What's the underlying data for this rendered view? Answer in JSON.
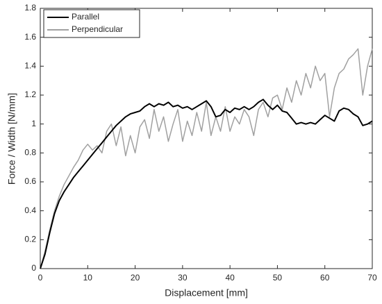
{
  "chart_data": {
    "type": "line",
    "xlabel": "Displacement [mm]",
    "ylabel": "Force / Width [N/mm]",
    "x": [
      0,
      1,
      2,
      3,
      4,
      5,
      6,
      7,
      8,
      9,
      10,
      11,
      12,
      13,
      14,
      15,
      16,
      17,
      18,
      19,
      20,
      21,
      22,
      23,
      24,
      25,
      26,
      27,
      28,
      29,
      30,
      31,
      32,
      33,
      34,
      35,
      36,
      37,
      38,
      39,
      40,
      41,
      42,
      43,
      44,
      45,
      46,
      47,
      48,
      49,
      50,
      51,
      52,
      53,
      54,
      55,
      56,
      57,
      58,
      59,
      60,
      61,
      62,
      63,
      64,
      65,
      66,
      67,
      68,
      69,
      70
    ],
    "series": [
      {
        "name": "Parallel",
        "color": "#000000",
        "values": [
          0,
          0.1,
          0.25,
          0.38,
          0.47,
          0.53,
          0.58,
          0.63,
          0.67,
          0.71,
          0.75,
          0.79,
          0.83,
          0.87,
          0.91,
          0.95,
          0.99,
          1.02,
          1.05,
          1.07,
          1.08,
          1.09,
          1.12,
          1.14,
          1.12,
          1.14,
          1.13,
          1.15,
          1.12,
          1.13,
          1.11,
          1.12,
          1.1,
          1.12,
          1.14,
          1.16,
          1.12,
          1.05,
          1.06,
          1.1,
          1.08,
          1.11,
          1.1,
          1.12,
          1.1,
          1.12,
          1.15,
          1.17,
          1.13,
          1.1,
          1.13,
          1.09,
          1.08,
          1.04,
          1,
          1.01,
          1,
          1.01,
          1,
          1.03,
          1.06,
          1.04,
          1.02,
          1.09,
          1.11,
          1.1,
          1.07,
          1.05,
          0.99,
          1,
          1.02
        ]
      },
      {
        "name": "Perpendicular",
        "color": "#a0a0a0",
        "values": [
          0,
          0.12,
          0.27,
          0.4,
          0.5,
          0.58,
          0.64,
          0.7,
          0.75,
          0.82,
          0.86,
          0.82,
          0.85,
          0.8,
          0.95,
          1,
          0.85,
          0.98,
          0.78,
          0.92,
          0.8,
          0.98,
          1.03,
          0.9,
          1.1,
          0.95,
          1.05,
          0.88,
          1,
          1.1,
          0.88,
          1.02,
          0.92,
          1.08,
          0.95,
          1.15,
          0.92,
          1.05,
          0.95,
          1.12,
          0.95,
          1.05,
          1,
          1.1,
          1.05,
          0.92,
          1.1,
          1.15,
          1.05,
          1.18,
          1.2,
          1.1,
          1.25,
          1.15,
          1.3,
          1.2,
          1.35,
          1.25,
          1.4,
          1.3,
          1.35,
          1.05,
          1.25,
          1.35,
          1.38,
          1.45,
          1.48,
          1.52,
          1.2,
          1.4,
          1.52
        ]
      }
    ],
    "xlim": [
      0,
      70
    ],
    "xticks": [
      0,
      10,
      20,
      30,
      40,
      50,
      60,
      70
    ],
    "ylim": [
      0,
      1.8
    ],
    "yticks": [
      0,
      0.2,
      0.4,
      0.6,
      0.8,
      1,
      1.2,
      1.4,
      1.6,
      1.8
    ],
    "grid": false,
    "legend": "upper left"
  }
}
